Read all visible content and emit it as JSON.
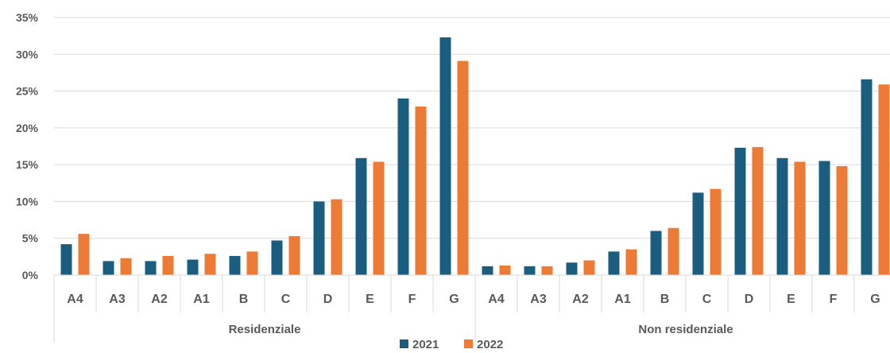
{
  "chart_data": {
    "type": "bar",
    "y_tick_labels": [
      "0%",
      "5%",
      "10%",
      "15%",
      "20%",
      "25%",
      "30%",
      "35%"
    ],
    "ylim": [
      0,
      35
    ],
    "grid": true,
    "legend_position": "bottom",
    "groups": [
      {
        "name": "Residenziale",
        "categories": [
          "A4",
          "A3",
          "A2",
          "A1",
          "B",
          "C",
          "D",
          "E",
          "F",
          "G"
        ]
      },
      {
        "name": "Non residenziale",
        "categories": [
          "A4",
          "A3",
          "A2",
          "A1",
          "B",
          "C",
          "D",
          "E",
          "F",
          "G"
        ]
      }
    ],
    "series": [
      {
        "name": "2021",
        "color": "#1b5d7f",
        "values": [
          4.2,
          1.9,
          1.9,
          2.1,
          2.6,
          4.7,
          10.0,
          15.9,
          24.0,
          32.3,
          1.2,
          1.2,
          1.7,
          3.2,
          6.0,
          11.2,
          17.3,
          15.9,
          15.5,
          26.6
        ]
      },
      {
        "name": "2022",
        "color": "#ed7a35",
        "values": [
          5.6,
          2.3,
          2.6,
          2.9,
          3.2,
          5.3,
          10.3,
          15.4,
          22.9,
          29.1,
          1.3,
          1.2,
          2.0,
          3.5,
          6.4,
          11.7,
          17.4,
          15.4,
          14.8,
          25.9
        ]
      }
    ]
  }
}
